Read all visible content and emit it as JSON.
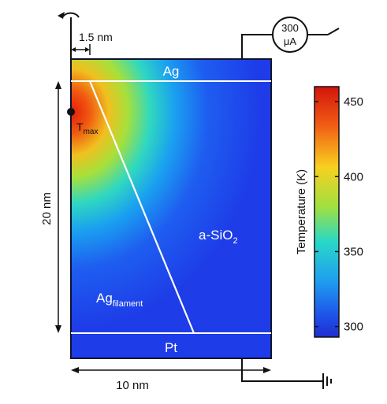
{
  "labels": {
    "top_electrode": "Ag",
    "bottom_electrode": "Pt",
    "oxide": "a-SiO",
    "oxide_subscript": "2",
    "filament": "Ag",
    "filament_subscript": "filament",
    "tmax": "T",
    "tmax_subscript": "max",
    "radius": "1.5 nm",
    "height": "20 nm",
    "width": "10 nm",
    "source_value": "300",
    "source_unit": "μA"
  },
  "colorbar": {
    "title": "Temperature (K)",
    "ticks": [
      "450",
      "400",
      "350",
      "300"
    ],
    "min": 293,
    "max": 460
  },
  "colors": {
    "background_field": "#1e3cf0",
    "hot": "#e81a0c",
    "frame": "#0d1330",
    "lines": "#ffffff"
  }
}
